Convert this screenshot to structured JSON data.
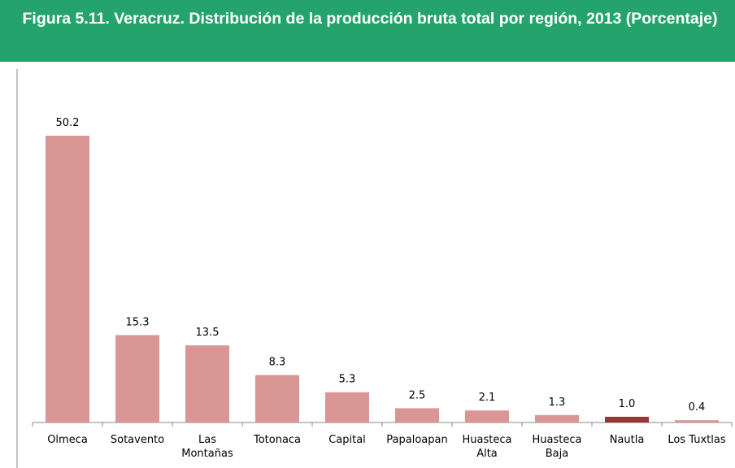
{
  "chart_data": {
    "type": "bar",
    "title": "Figura 5.11. Veracruz. Distribución de la producción bruta total por región, 2013 (Porcentaje)",
    "categories": [
      "Olmeca",
      "Sotavento",
      "Las Montañas",
      "Totonaca",
      "Capital",
      "Papaloapan",
      "Huasteca Alta",
      "Huasteca Baja",
      "Nautla",
      "Los Tuxtlas"
    ],
    "values": [
      50.2,
      15.3,
      13.5,
      8.3,
      5.3,
      2.5,
      2.1,
      1.3,
      1,
      0.4
    ],
    "value_labels": [
      "50.2",
      "15.3",
      "13.5",
      "8.3",
      "5.3",
      "2.5",
      "2.1",
      "1.3",
      "1.0",
      "0.4"
    ],
    "colors": [
      "#d99694",
      "#d99694",
      "#d99694",
      "#d99694",
      "#d99694",
      "#d99694",
      "#d99694",
      "#d99694",
      "#953735",
      "#d99694"
    ]
  }
}
